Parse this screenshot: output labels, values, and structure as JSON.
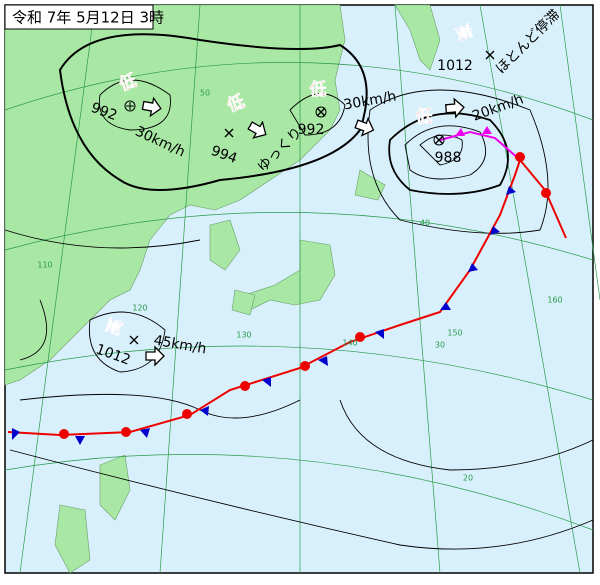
{
  "title": "令和 7年 5月12日 3時",
  "systems": [
    {
      "symbol": "低",
      "pressure": 992,
      "speed": "30km/h"
    },
    {
      "symbol": "低",
      "pressure": 994,
      "speed": "ゆっくり"
    },
    {
      "symbol": "低",
      "pressure": 992,
      "speed": "30km/h"
    },
    {
      "symbol": "低",
      "pressure": 988,
      "speed": "20km/h"
    },
    {
      "symbol": "高",
      "pressure": 1012,
      "speed": "ほとんど停滞"
    },
    {
      "symbol": "高",
      "pressure": 1012,
      "speed": "45km/h"
    }
  ],
  "grid_labels": [
    "50",
    "40",
    "30",
    "20",
    "110",
    "120",
    "130",
    "140",
    "150",
    "160"
  ]
}
